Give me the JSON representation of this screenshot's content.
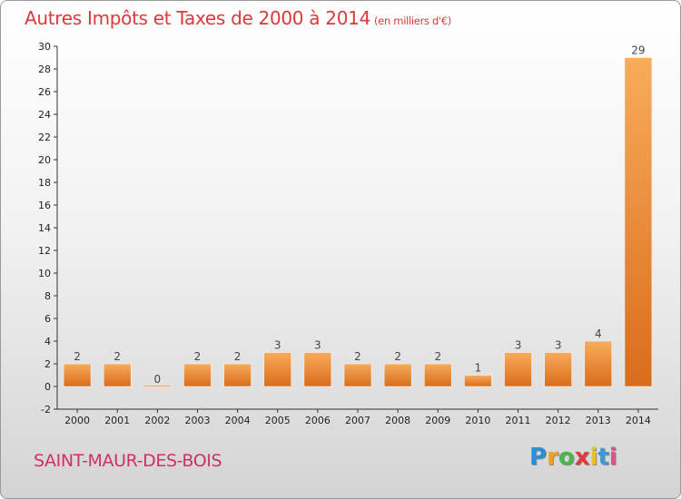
{
  "title": "Autres Impôts et Taxes de 2000 à 2014",
  "unit": "(en milliers d'€)",
  "commune": "SAINT-MAUR-DES-BOIS",
  "logo": {
    "letters": [
      "P",
      "r",
      "o",
      "x",
      "i",
      "t",
      "i"
    ],
    "colors": [
      "#2a8fd6",
      "#f0a020",
      "#49b84a",
      "#e03b3b",
      "#f0c020",
      "#3a9ad9",
      "#e0508a"
    ]
  },
  "colors": {
    "bar_light": "#f8ac5c",
    "bar_dark": "#d96c1a",
    "title": "#d93a3a",
    "commune": "#d0306a"
  },
  "chart_data": {
    "type": "bar",
    "title": "Autres Impôts et Taxes de 2000 à 2014",
    "categories": [
      "2000",
      "2001",
      "2002",
      "2003",
      "2004",
      "2005",
      "2006",
      "2007",
      "2008",
      "2009",
      "2010",
      "2011",
      "2012",
      "2013",
      "2014"
    ],
    "values": [
      2,
      2,
      0,
      2,
      2,
      3,
      3,
      2,
      2,
      2,
      1,
      3,
      3,
      4,
      29
    ],
    "ylim": [
      -2,
      30
    ],
    "yticks": [
      -2,
      0,
      2,
      4,
      6,
      8,
      10,
      12,
      14,
      16,
      18,
      20,
      22,
      24,
      26,
      28,
      30
    ],
    "grid": false
  }
}
